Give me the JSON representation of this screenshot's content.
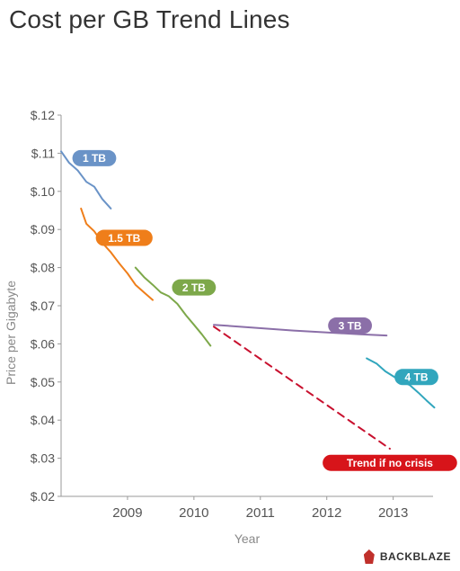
{
  "chart_data": {
    "type": "line",
    "title": "Cost per GB Trend Lines",
    "xlabel": "Year",
    "ylabel": "Price per Gigabyte",
    "xlim": [
      2008.0,
      2013.6
    ],
    "ylim": [
      0.02,
      0.12
    ],
    "x_ticks": [
      2009,
      2010,
      2011,
      2012,
      2013
    ],
    "x_tick_labels": [
      "2009",
      "2010",
      "2011",
      "2012",
      "2013"
    ],
    "y_ticks": [
      0.02,
      0.03,
      0.04,
      0.05,
      0.06,
      0.07,
      0.08,
      0.09,
      0.1,
      0.11,
      0.12
    ],
    "y_tick_labels": [
      "$.02",
      "$.03",
      "$.04",
      "$.05",
      "$.06",
      "$.07",
      "$.08",
      "$.09",
      "$.10",
      "$.11",
      "$.12"
    ],
    "grid": false,
    "series": [
      {
        "name": "1 TB",
        "color": "#6a93c7",
        "points": [
          [
            2008.0,
            0.1105
          ],
          [
            2008.12,
            0.1075
          ],
          [
            2008.25,
            0.1055
          ],
          [
            2008.38,
            0.1025
          ],
          [
            2008.5,
            0.1012
          ],
          [
            2008.62,
            0.098
          ],
          [
            2008.75,
            0.0955
          ]
        ]
      },
      {
        "name": "1.5 TB",
        "color": "#ef7e1a",
        "points": [
          [
            2008.3,
            0.0955
          ],
          [
            2008.38,
            0.0915
          ],
          [
            2008.5,
            0.0895
          ],
          [
            2008.62,
            0.0865
          ],
          [
            2008.75,
            0.084
          ],
          [
            2008.88,
            0.081
          ],
          [
            2009.0,
            0.0785
          ],
          [
            2009.12,
            0.0755
          ],
          [
            2009.25,
            0.0735
          ],
          [
            2009.38,
            0.0715
          ]
        ]
      },
      {
        "name": "2 TB",
        "color": "#7da84a",
        "points": [
          [
            2009.12,
            0.08
          ],
          [
            2009.25,
            0.0775
          ],
          [
            2009.38,
            0.0755
          ],
          [
            2009.5,
            0.0735
          ],
          [
            2009.62,
            0.0725
          ],
          [
            2009.75,
            0.0705
          ],
          [
            2009.88,
            0.0675
          ],
          [
            2010.0,
            0.065
          ],
          [
            2010.12,
            0.0625
          ],
          [
            2010.25,
            0.0595
          ]
        ]
      },
      {
        "name": "3 TB",
        "color": "#8b6fa8",
        "points": [
          [
            2010.3,
            0.065
          ],
          [
            2011.5,
            0.0635
          ],
          [
            2012.5,
            0.0625
          ],
          [
            2012.9,
            0.0622
          ]
        ]
      },
      {
        "name": "4 TB",
        "color": "#31a6bd",
        "points": [
          [
            2012.6,
            0.0562
          ],
          [
            2012.75,
            0.0548
          ],
          [
            2012.88,
            0.0528
          ],
          [
            2013.0,
            0.0515
          ],
          [
            2013.12,
            0.0502
          ],
          [
            2013.25,
            0.0492
          ],
          [
            2013.38,
            0.0472
          ],
          [
            2013.5,
            0.0452
          ],
          [
            2013.62,
            0.0433
          ]
        ]
      },
      {
        "name": "Trend if no crisis",
        "color": "#c8102e",
        "dashed": true,
        "points": [
          [
            2010.3,
            0.0645
          ],
          [
            2012.95,
            0.0325
          ]
        ]
      }
    ],
    "labels": [
      {
        "text": "1 TB",
        "color": "#6a93c7",
        "at": [
          2008.5,
          0.1087
        ]
      },
      {
        "text": "1.5 TB",
        "color": "#ef7e1a",
        "at": [
          2008.95,
          0.0878
        ]
      },
      {
        "text": "2 TB",
        "color": "#7da84a",
        "at": [
          2010.0,
          0.0748
        ]
      },
      {
        "text": "3 TB",
        "color": "#8b6fa8",
        "at": [
          2012.35,
          0.0648
        ]
      },
      {
        "text": "4 TB",
        "color": "#31a6bd",
        "at": [
          2013.35,
          0.0513
        ]
      },
      {
        "text": "Trend if no crisis",
        "color": "#d7141a",
        "at": [
          2012.95,
          0.0288
        ]
      }
    ]
  },
  "branding": {
    "logo_text": "BACKBLAZE"
  }
}
